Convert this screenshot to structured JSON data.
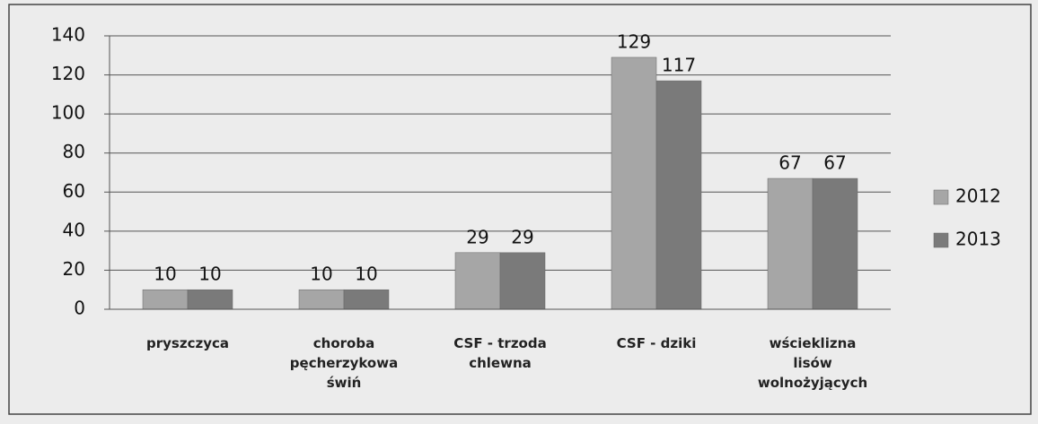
{
  "chart_data": {
    "type": "bar",
    "categories": [
      "pryszczyca",
      "choroba pęcherzykowa świń",
      "CSF - trzoda chlewna",
      "CSF - dziki",
      "wścieklizna lisów wolnożyjących"
    ],
    "series": [
      {
        "name": "2012",
        "color": "#a6a6a6",
        "values": [
          10,
          10,
          29,
          129,
          67
        ]
      },
      {
        "name": "2013",
        "color": "#7a7a7a",
        "values": [
          10,
          10,
          29,
          117,
          67
        ]
      }
    ],
    "ylim": [
      0,
      140
    ],
    "yticks": [
      0,
      20,
      40,
      60,
      80,
      100,
      120,
      140
    ],
    "grid": true,
    "legend": "right"
  }
}
